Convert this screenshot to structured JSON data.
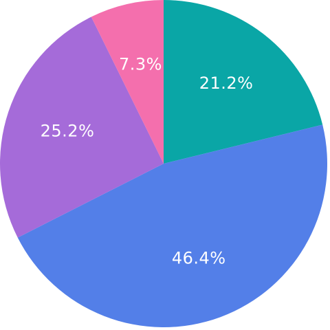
{
  "chart_data": {
    "type": "pie",
    "values": [
      21.2,
      46.4,
      25.2,
      7.3
    ],
    "value_labels": [
      "21.2%",
      "46.4%",
      "25.2%",
      "7.3%"
    ],
    "colors": [
      "#0aa6a6",
      "#537fe8",
      "#a56bd9",
      "#f46fad"
    ]
  }
}
